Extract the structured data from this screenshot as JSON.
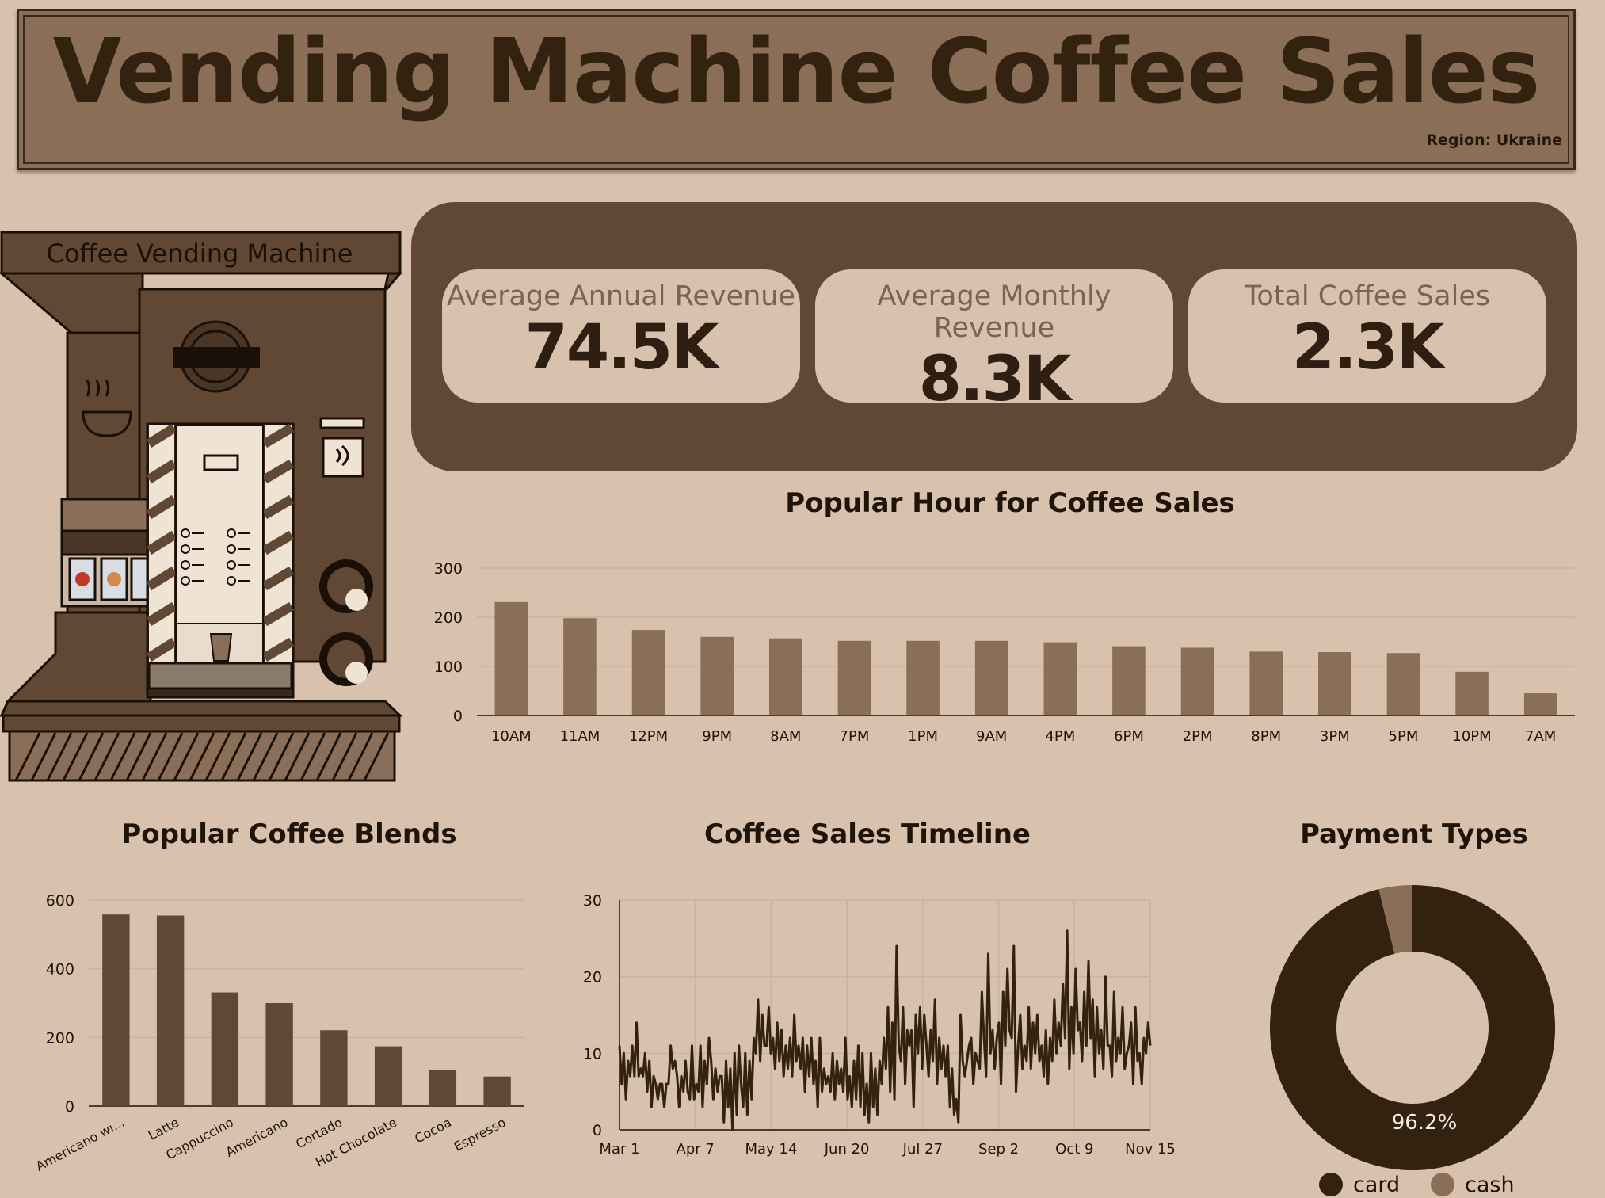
{
  "header": {
    "title": "Vending Machine Coffee Sales",
    "region": "Region: Ukraine"
  },
  "illustration": {
    "sign": "Coffee Vending Machine"
  },
  "kpis": [
    {
      "label": "Average Annual Revenue",
      "value": "74.5K"
    },
    {
      "label": "Average Monthly Revenue",
      "value": "8.3K"
    },
    {
      "label": "Total Coffee Sales",
      "value": "2.3K"
    }
  ],
  "colors": {
    "background": "#d9c2ad",
    "banner": "#8b6e58",
    "panel": "#604834",
    "bar_light": "#8b6e58",
    "bar_dark": "#604834",
    "line": "#33220f",
    "card": "#33220f",
    "cash": "#8b6e58"
  },
  "chart_data": [
    {
      "type": "bar",
      "title": "Popular Hour for Coffee Sales",
      "categories": [
        "10AM",
        "11AM",
        "12PM",
        "9PM",
        "8AM",
        "7PM",
        "1PM",
        "9AM",
        "4PM",
        "6PM",
        "2PM",
        "8PM",
        "3PM",
        "5PM",
        "10PM",
        "7AM"
      ],
      "values": [
        231,
        198,
        174,
        160,
        157,
        152,
        152,
        152,
        149,
        141,
        138,
        130,
        129,
        127,
        89,
        45
      ],
      "yticks": [
        0,
        100,
        200,
        300
      ],
      "ylim": [
        0,
        300
      ],
      "grid": true
    },
    {
      "type": "bar",
      "title": "Popular Coffee Blends",
      "categories": [
        "Americano wi...",
        "Latte",
        "Cappuccino",
        "Americano",
        "Cortado",
        "Hot Chocolate",
        "Cocoa",
        "Espresso"
      ],
      "values": [
        558,
        555,
        331,
        300,
        221,
        174,
        105,
        86
      ],
      "yticks": [
        0,
        200,
        400,
        600
      ],
      "ylim": [
        0,
        600
      ],
      "grid": true
    },
    {
      "type": "line",
      "title": "Coffee Sales Timeline",
      "x_start": "Mar 1",
      "x_end": "Nov 15",
      "xticks": [
        "Mar 1",
        "Apr 7",
        "May 14",
        "Jun 20",
        "Jul 27",
        "Sep 2",
        "Oct 9",
        "Nov 15"
      ],
      "yticks": [
        0,
        10,
        20,
        30
      ],
      "ylim": [
        0,
        30
      ],
      "grid": true,
      "values": [
        11,
        6,
        10,
        4,
        9,
        7,
        11,
        7,
        14,
        7,
        8,
        7,
        10,
        5,
        9,
        3,
        7,
        6,
        4,
        6,
        6,
        3,
        6,
        6,
        11,
        8,
        9,
        7,
        3,
        7,
        5,
        9,
        5,
        4,
        11,
        4,
        6,
        5,
        11,
        3,
        9,
        6,
        12,
        9,
        4,
        8,
        5,
        7,
        7,
        1,
        9,
        3,
        8,
        0,
        10,
        2,
        11,
        6,
        3,
        10,
        2,
        9,
        4,
        12,
        10,
        17,
        9,
        15,
        11,
        11,
        16,
        10,
        12,
        8,
        14,
        9,
        13,
        7,
        11,
        8,
        12,
        7,
        15,
        9,
        11,
        8,
        12,
        5,
        11,
        7,
        12,
        6,
        9,
        3,
        12,
        5,
        8,
        6,
        7,
        5,
        10,
        4,
        9,
        6,
        8,
        5,
        12,
        4,
        7,
        3,
        9,
        4,
        11,
        3,
        10,
        2,
        6,
        1,
        10,
        3,
        8,
        2,
        9,
        6,
        12,
        8,
        16,
        5,
        14,
        4,
        24,
        11,
        9,
        16,
        6,
        13,
        11,
        13,
        3,
        15,
        10,
        16,
        8,
        15,
        11,
        7,
        13,
        9,
        17,
        6,
        12,
        8,
        11,
        7,
        11,
        3,
        8,
        2,
        4,
        1,
        15,
        9,
        7,
        9,
        11,
        12,
        6,
        10,
        9,
        8,
        18,
        12,
        7,
        23,
        10,
        13,
        8,
        12,
        14,
        6,
        18,
        11,
        21,
        13,
        12,
        24,
        5,
        11,
        15,
        8,
        11,
        9,
        16,
        8,
        14,
        10,
        15,
        9,
        11,
        7,
        13,
        6,
        12,
        9,
        17,
        10,
        14,
        11,
        19,
        12,
        26,
        8,
        16,
        10,
        21,
        13,
        14,
        9,
        18,
        11,
        22,
        12,
        17,
        7,
        16,
        10,
        13,
        8,
        20,
        11,
        11,
        7,
        18,
        9,
        12,
        10,
        16,
        8,
        10,
        11,
        14,
        6,
        16,
        9,
        10,
        6,
        12,
        10,
        14,
        11
      ]
    },
    {
      "type": "pie",
      "title": "Payment Types",
      "labels": [
        "card",
        "cash"
      ],
      "values": [
        96.2,
        3.8
      ],
      "donut": true,
      "data_label": "96.2%",
      "legend": "bottom"
    }
  ]
}
